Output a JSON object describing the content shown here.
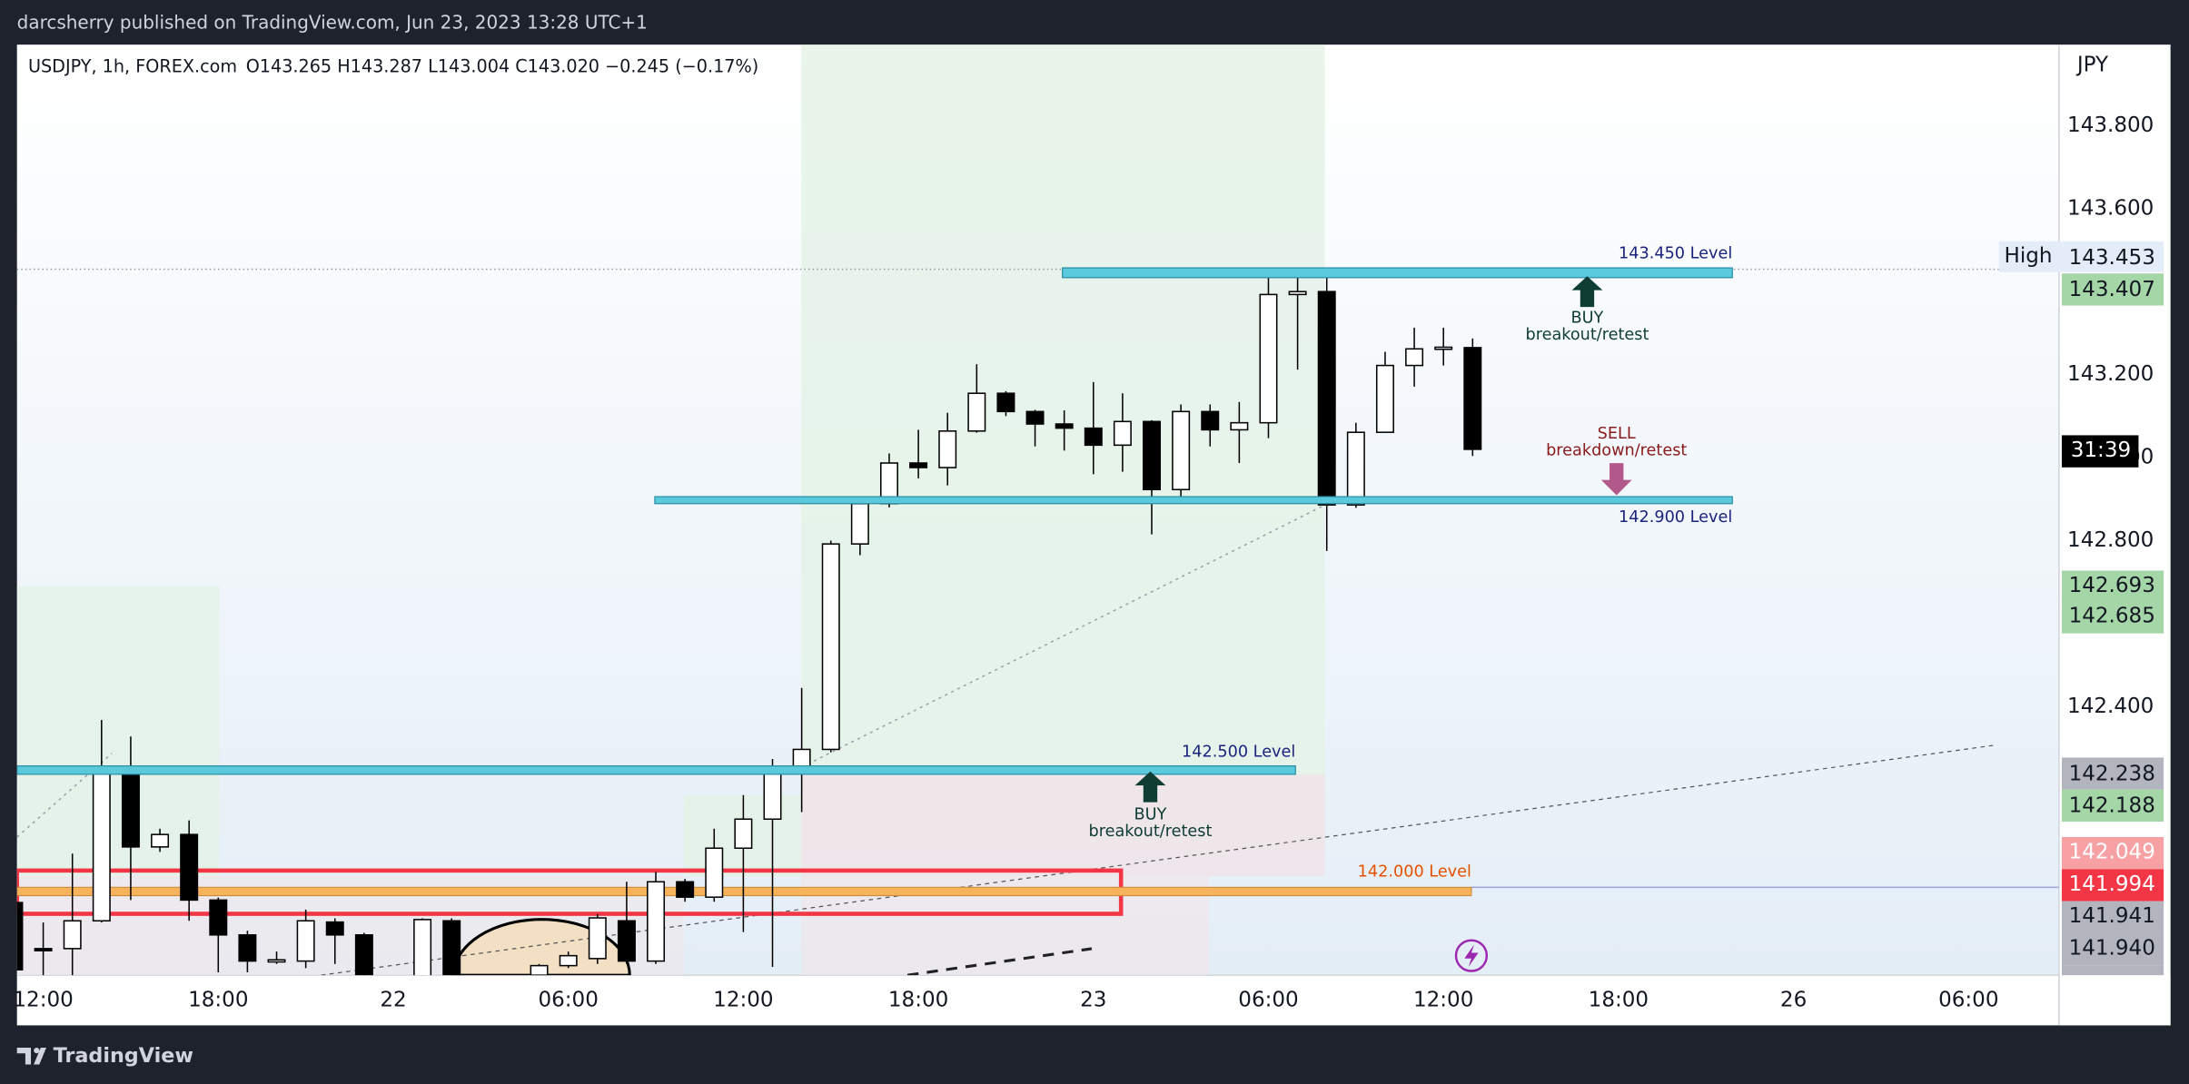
{
  "header": {
    "text": "darcsherry published on TradingView.com, Jun 23, 2023 13:28 UTC+1"
  },
  "chart_data": {
    "type": "candlestick",
    "symbol": "USDJPY, 1h, FOREX.com",
    "ohlc_label": "O143.265  H143.287  L143.004  C143.020  −0.245 (−0.17%)",
    "currency": "JPY",
    "x": [
      11,
      12,
      13,
      14,
      15,
      16,
      17,
      18,
      19,
      20,
      21,
      22,
      23,
      25,
      26,
      29,
      30,
      31,
      32,
      33,
      34,
      35,
      36,
      37,
      38,
      39,
      40,
      41,
      42,
      43,
      44,
      45,
      46,
      47,
      48,
      49,
      50,
      51,
      52,
      53,
      54,
      55,
      56,
      57,
      58,
      59,
      60,
      61
    ],
    "open": [
      141.928,
      141.817,
      141.817,
      141.884,
      142.25,
      142.062,
      142.092,
      141.934,
      141.85,
      141.787,
      141.787,
      141.881,
      141.85,
      141.72,
      141.884,
      141.753,
      141.776,
      141.793,
      141.884,
      141.787,
      141.978,
      141.941,
      142.059,
      142.129,
      142.244,
      142.297,
      142.792,
      142.889,
      142.987,
      142.976,
      143.064,
      143.155,
      143.111,
      143.081,
      143.071,
      143.03,
      143.087,
      142.923,
      143.111,
      143.067,
      143.084,
      143.393,
      143.4,
      142.886,
      143.061,
      143.222,
      143.266,
      143.265
    ],
    "high": [
      141.934,
      141.88,
      142.046,
      142.368,
      142.328,
      142.106,
      142.126,
      141.94,
      141.86,
      141.81,
      141.911,
      141.89,
      141.855,
      141.89,
      141.89,
      141.78,
      141.81,
      141.9,
      141.978,
      142.002,
      141.985,
      142.106,
      142.187,
      142.274,
      142.445,
      142.8,
      142.9,
      143.01,
      143.067,
      143.108,
      143.225,
      143.16,
      143.115,
      143.114,
      143.182,
      143.155,
      143.09,
      143.128,
      143.128,
      143.134,
      143.437,
      143.447,
      143.437,
      143.084,
      143.255,
      143.313,
      143.313,
      143.287
    ],
    "low": [
      141.7,
      141.75,
      141.75,
      141.88,
      141.934,
      142.05,
      141.884,
      141.76,
      141.76,
      141.78,
      141.77,
      141.78,
      141.7,
      141.7,
      141.7,
      141.74,
      141.77,
      141.78,
      141.78,
      141.78,
      141.93,
      141.93,
      141.857,
      141.773,
      142.146,
      142.29,
      142.765,
      142.88,
      142.95,
      142.933,
      143.06,
      143.1,
      143.027,
      143.017,
      142.96,
      142.966,
      142.815,
      142.892,
      143.027,
      142.987,
      143.047,
      143.212,
      142.775,
      142.879,
      143.06,
      143.171,
      143.222,
      143.004
    ],
    "close": [
      141.766,
      141.815,
      141.884,
      142.254,
      142.062,
      142.092,
      141.934,
      141.85,
      141.787,
      141.79,
      141.884,
      141.85,
      141.72,
      141.887,
      141.72,
      141.776,
      141.8,
      141.891,
      141.787,
      141.978,
      141.941,
      142.059,
      142.129,
      142.244,
      142.297,
      142.792,
      142.889,
      142.987,
      142.976,
      143.064,
      143.155,
      143.111,
      143.081,
      143.071,
      143.03,
      143.087,
      142.923,
      143.111,
      143.067,
      143.084,
      143.393,
      143.4,
      142.886,
      143.061,
      143.222,
      143.262,
      143.266,
      143.02
    ],
    "up_color": "#ffffff",
    "down_color": "#000000",
    "xlim": [
      11.1,
      81.1
    ],
    "xticks": [
      {
        "value": 12,
        "label": "12:00"
      },
      {
        "value": 18,
        "label": "18:00"
      },
      {
        "value": 24,
        "label": "22"
      },
      {
        "value": 30,
        "label": "06:00"
      },
      {
        "value": 36,
        "label": "12:00"
      },
      {
        "value": 42,
        "label": "18:00"
      },
      {
        "value": 48,
        "label": "23"
      },
      {
        "value": 54,
        "label": "06:00"
      },
      {
        "value": 60,
        "label": "12:00"
      },
      {
        "value": 66,
        "label": "18:00"
      },
      {
        "value": 72,
        "label": "26"
      },
      {
        "value": 78,
        "label": "06:00"
      }
    ],
    "ylim": [
      141.753,
      143.995
    ],
    "yticks": [
      {
        "value": 143.8,
        "label": "143.800"
      },
      {
        "value": 143.6,
        "label": "143.600"
      },
      {
        "value": 143.2,
        "label": "143.200"
      },
      {
        "value": 143.0,
        "label": "143.000"
      },
      {
        "value": 142.8,
        "label": "142.800"
      },
      {
        "value": 142.4,
        "label": "142.400"
      }
    ],
    "high_label": "High",
    "countdown": "31:39",
    "price_badges": [
      "143.453",
      "143.407",
      "142.693",
      "142.685",
      "142.238",
      "142.188",
      "142.049",
      "141.994",
      "141.941",
      "141.940"
    ]
  },
  "annotations": {
    "levels": [
      "143.450 Level",
      "142.900 Level",
      "142.500 Level",
      "142.000 Level"
    ],
    "signals": [
      {
        "action": "BUY",
        "note": "breakout/retest"
      },
      {
        "action": "SELL",
        "note": "breakdown/retest"
      },
      {
        "action": "BUY",
        "note": "breakout/retest"
      }
    ]
  },
  "footer": {
    "brand": "TradingView"
  }
}
